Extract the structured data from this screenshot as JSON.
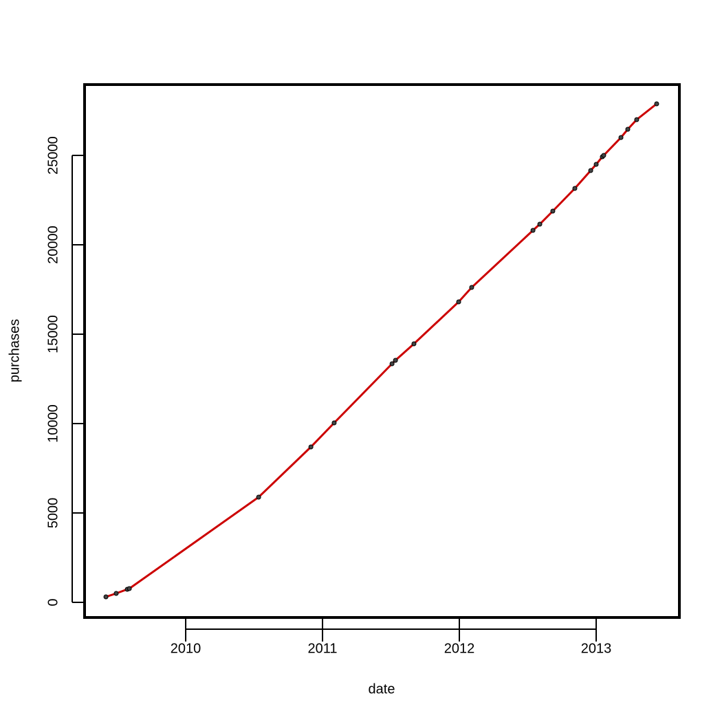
{
  "chart_data": {
    "type": "line",
    "x_label": "date",
    "y_label": "purchases",
    "x": [
      2009.417,
      2009.492,
      2009.573,
      2009.588,
      2010.533,
      2010.915,
      2011.085,
      2011.508,
      2011.533,
      2011.668,
      2011.995,
      2012.09,
      2012.538,
      2012.588,
      2012.683,
      2012.844,
      2012.96,
      2013.0,
      2013.045,
      2013.055,
      2013.181,
      2013.231,
      2013.296,
      2013.442
    ],
    "series": [
      {
        "color": "#cc0000",
        "marker_color": "#444444",
        "values": [
          308,
          500,
          731,
          769,
          5885,
          8692,
          10038,
          13346,
          13538,
          14461,
          16808,
          17615,
          20808,
          21154,
          21885,
          23154,
          24154,
          24500,
          24923,
          25000,
          26000,
          26462,
          27000,
          27885
        ]
      }
    ],
    "xlim": [
      2009.261,
      2013.608
    ],
    "xticks": [
      2010,
      2011,
      2012,
      2013
    ],
    "ylim": [
      -846,
      28962
    ],
    "yticks": [
      0,
      5000,
      10000,
      15000,
      20000,
      25000
    ]
  }
}
